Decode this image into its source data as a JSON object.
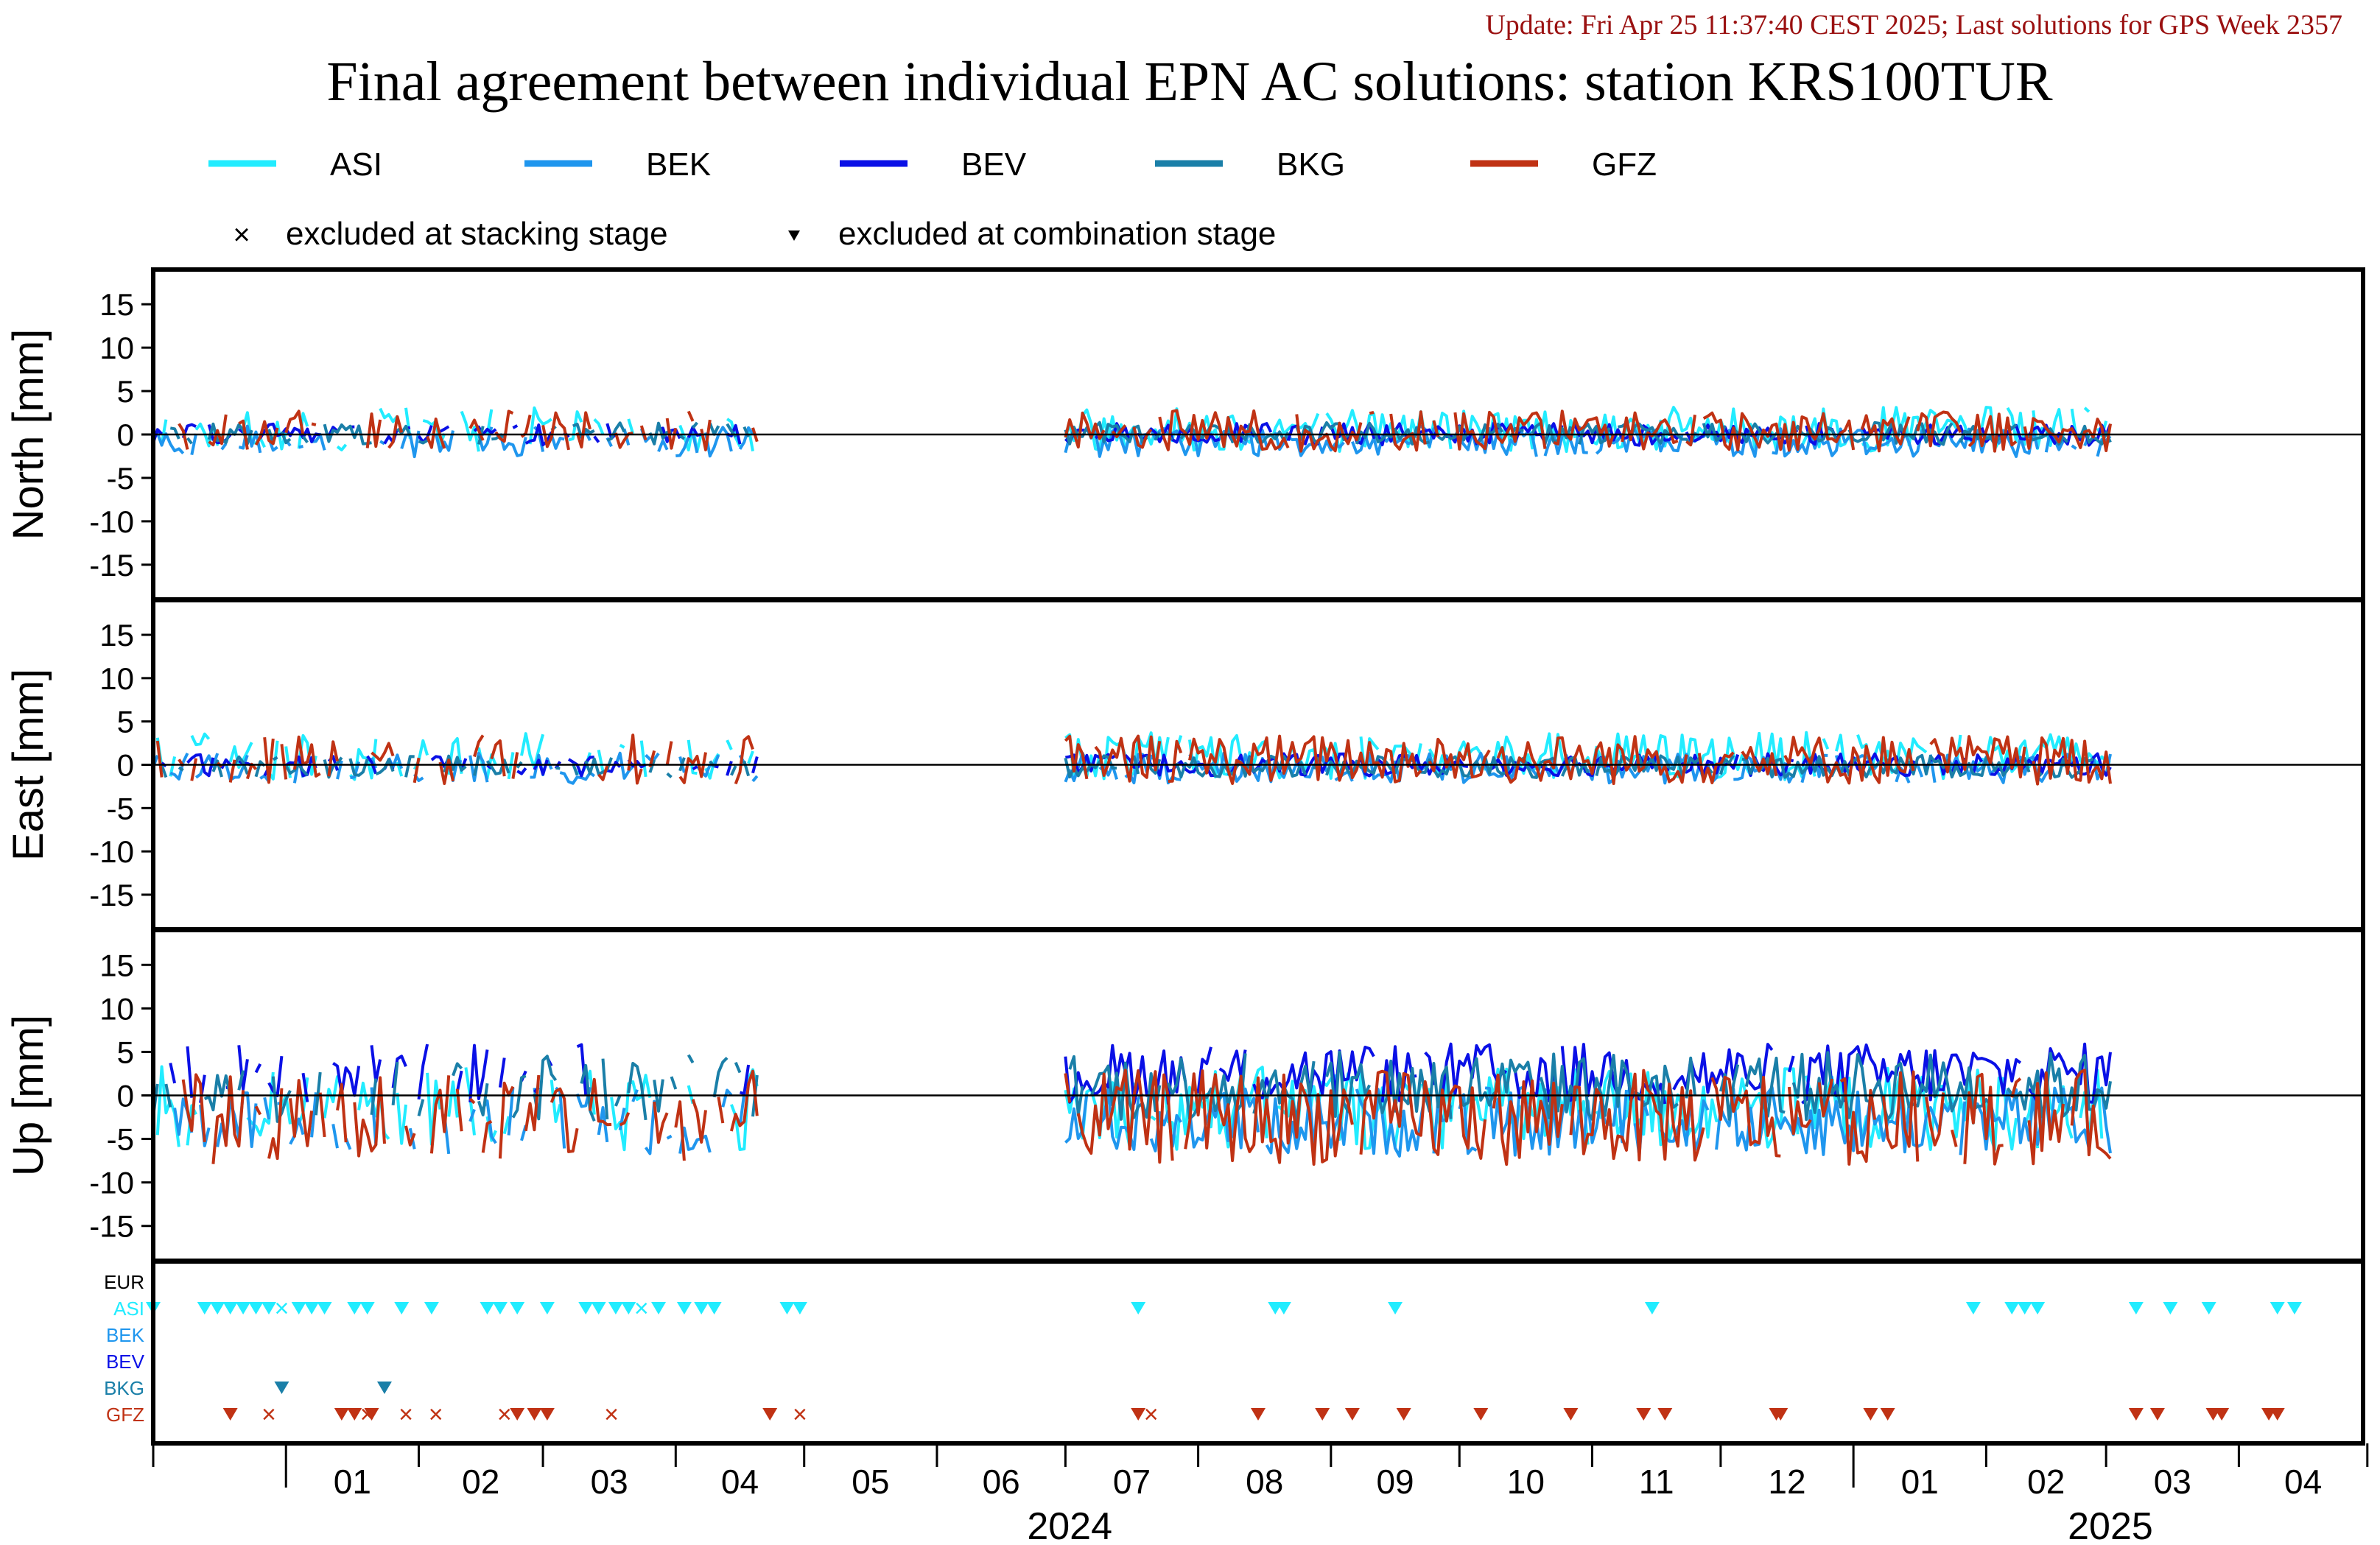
{
  "update_text": "Update: Fri Apr 25 11:37:40 CEST 2025; Last solutions for GPS Week 2357",
  "chart_data": {
    "type": "line",
    "title": "Final agreement between individual EPN AC solutions: station KRS100TUR",
    "legend": {
      "placement": "top",
      "series": [
        "ASI",
        "BEK",
        "BEV",
        "BKG",
        "GFZ"
      ],
      "marker_labels": [
        "excluded at stacking stage",
        "excluded at combination stage"
      ]
    },
    "colors": {
      "ASI": "#22ecff",
      "BEK": "#1f96ee",
      "BEV": "#0a10e6",
      "BKG": "#1a7fa8",
      "GFZ": "#c03214",
      "EUR": "#000000",
      "title": "#000000",
      "update": "#9a1010"
    },
    "x_axis": {
      "type": "date",
      "range": [
        "2023-12-01",
        "2025-04-30"
      ],
      "month_labels": [
        "01",
        "02",
        "03",
        "04",
        "05",
        "06",
        "07",
        "08",
        "09",
        "10",
        "11",
        "12",
        "01",
        "02",
        "03",
        "04"
      ],
      "year_labels": [
        "2024",
        "2025"
      ]
    },
    "panels": [
      {
        "ylabel": "North [mm]",
        "ylim": [
          -19,
          19
        ],
        "yticks": [
          15,
          10,
          5,
          0,
          -5,
          -10,
          -15
        ],
        "amplitude": {
          "ASI": 1.6,
          "BEK": 1.1,
          "BEV": 0.8,
          "BKG": 0.8,
          "GFZ": 1.5
        },
        "bias": {
          "ASI": 0.6,
          "BEK": -0.8,
          "BEV": 0.0,
          "BKG": 0.1,
          "GFZ": 0.4
        }
      },
      {
        "ylabel": "East [mm]",
        "ylim": [
          -19,
          19
        ],
        "yticks": [
          15,
          10,
          5,
          0,
          -5,
          -10,
          -15
        ],
        "amplitude": {
          "ASI": 1.7,
          "BEK": 1.1,
          "BEV": 0.8,
          "BKG": 0.8,
          "GFZ": 1.8
        },
        "bias": {
          "ASI": 1.0,
          "BEK": -0.4,
          "BEV": 0.0,
          "BKG": -0.2,
          "GFZ": 0.6
        }
      },
      {
        "ylabel": "Up [mm]",
        "ylim": [
          -19,
          19
        ],
        "yticks": [
          15,
          10,
          5,
          0,
          -5,
          -10,
          -15
        ],
        "amplitude": {
          "ASI": 3.0,
          "BEK": 2.5,
          "BEV": 2.2,
          "BKG": 2.5,
          "GFZ": 3.4
        },
        "bias": {
          "ASI": -1.5,
          "BEK": -3.0,
          "BEV": 2.5,
          "BKG": 1.0,
          "GFZ": -2.5
        }
      }
    ],
    "data_periods": [
      [
        "2023-12-01",
        "2024-04-20"
      ],
      [
        "2024-07-01",
        "2025-03-02"
      ]
    ],
    "exclusion_panel": {
      "rows": [
        "EUR",
        "ASI",
        "BEK",
        "BEV",
        "BKG",
        "GFZ"
      ],
      "events": [
        {
          "ac": "ASI",
          "kind": "combination",
          "dates": [
            "2023-12-01",
            "2023-12-13",
            "2023-12-16",
            "2023-12-19",
            "2023-12-22",
            "2023-12-25",
            "2023-12-28",
            "2024-01-04",
            "2024-01-07",
            "2024-01-10",
            "2024-01-17",
            "2024-01-20",
            "2024-01-28",
            "2024-02-04",
            "2024-02-17",
            "2024-02-20",
            "2024-02-24",
            "2024-03-02",
            "2024-03-11",
            "2024-03-14",
            "2024-03-18",
            "2024-03-21",
            "2024-03-28",
            "2024-04-03",
            "2024-04-07",
            "2024-04-10",
            "2024-04-27",
            "2024-04-30",
            "2024-07-18",
            "2024-08-19",
            "2024-08-21",
            "2024-09-16",
            "2024-11-15",
            "2025-01-29",
            "2025-02-07",
            "2025-02-10",
            "2025-02-13",
            "2025-03-08",
            "2025-03-16",
            "2025-03-25",
            "2025-04-10",
            "2025-04-14"
          ]
        },
        {
          "ac": "ASI",
          "kind": "stacking",
          "dates": [
            "2023-12-31",
            "2024-03-24"
          ]
        },
        {
          "ac": "BKG",
          "kind": "combination",
          "dates": [
            "2023-12-31",
            "2024-01-24"
          ]
        },
        {
          "ac": "GFZ",
          "kind": "combination",
          "dates": [
            "2023-12-19",
            "2024-01-14",
            "2024-01-17",
            "2024-01-21",
            "2024-02-24",
            "2024-02-28",
            "2024-03-02",
            "2024-04-23",
            "2024-07-18",
            "2024-08-15",
            "2024-08-30",
            "2024-09-06",
            "2024-09-18",
            "2024-10-06",
            "2024-10-27",
            "2024-11-13",
            "2024-11-18",
            "2024-12-14",
            "2024-12-15",
            "2025-01-05",
            "2025-01-09",
            "2025-03-08",
            "2025-03-13",
            "2025-03-26",
            "2025-03-28",
            "2025-04-08",
            "2025-04-10"
          ]
        },
        {
          "ac": "GFZ",
          "kind": "stacking",
          "dates": [
            "2023-12-28",
            "2024-01-20",
            "2024-01-29",
            "2024-02-05",
            "2024-02-21",
            "2024-03-17",
            "2024-04-30",
            "2024-07-21"
          ]
        }
      ]
    }
  }
}
